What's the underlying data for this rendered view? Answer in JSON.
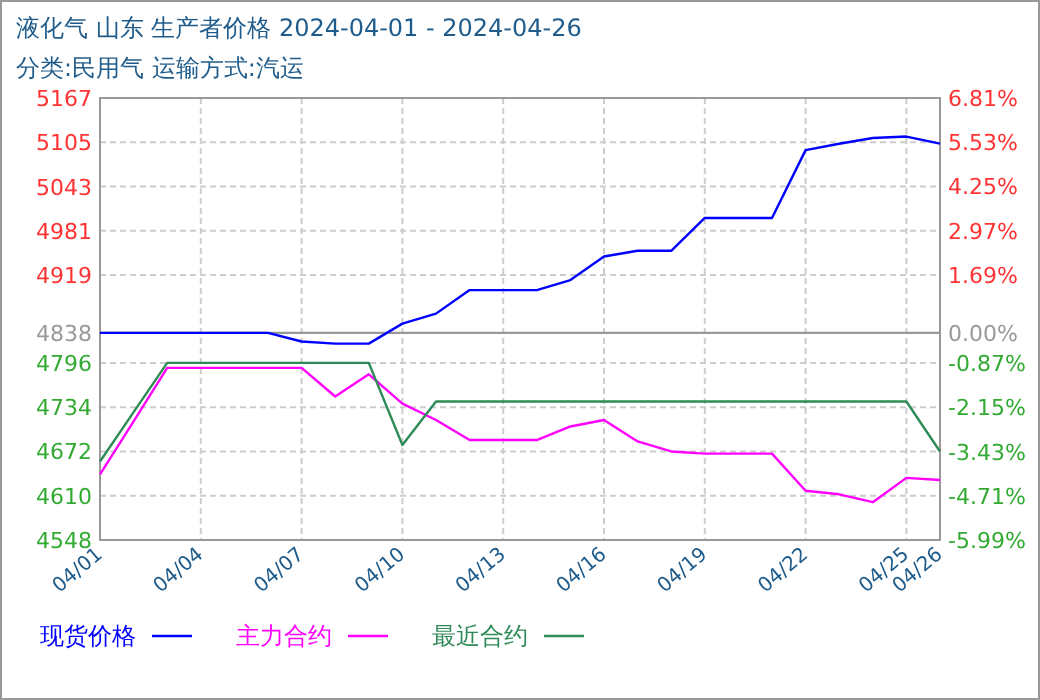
{
  "chart_data": {
    "type": "line",
    "title": "液化气 山东 生产者价格 2024-04-01 - 2024-04-26",
    "subtitle": "分类:民用气 运输方式:汽运",
    "x": [
      "2024-04-01",
      "2024-04-02",
      "2024-04-03",
      "2024-04-04",
      "2024-04-05",
      "2024-04-06",
      "2024-04-07",
      "2024-04-08",
      "2024-04-09",
      "2024-04-10",
      "2024-04-11",
      "2024-04-12",
      "2024-04-13",
      "2024-04-14",
      "2024-04-15",
      "2024-04-16",
      "2024-04-17",
      "2024-04-18",
      "2024-04-19",
      "2024-04-20",
      "2024-04-21",
      "2024-04-22",
      "2024-04-23",
      "2024-04-24",
      "2024-04-25",
      "2024-04-26"
    ],
    "series": [
      {
        "name": "现货价格",
        "color": "#0000ff",
        "values": [
          4838,
          4838,
          4838,
          4838,
          4838,
          4838,
          4826,
          4823,
          4823,
          4851,
          4865,
          4898,
          4898,
          4898,
          4912,
          4945,
          4953,
          4953,
          4999,
          4999,
          4999,
          5094,
          5103,
          5111,
          5113,
          5103
        ]
      },
      {
        "name": "主力合约",
        "color": "#ff00ff",
        "values": [
          4640,
          4714,
          4789,
          4789,
          4789,
          4789,
          4789,
          4749,
          4780,
          4739,
          4716,
          4688,
          4688,
          4688,
          4707,
          4716,
          4686,
          4672,
          4669,
          4669,
          4669,
          4617,
          4612,
          4601,
          4635,
          4632
        ]
      },
      {
        "name": "最近合约",
        "color": "#2e8b57",
        "values": [
          4658,
          4727,
          4796,
          4796,
          4796,
          4796,
          4796,
          4796,
          4796,
          4681,
          4742,
          4742,
          4742,
          4742,
          4742,
          4742,
          4742,
          4742,
          4742,
          4742,
          4742,
          4742,
          4742,
          4742,
          4742,
          4672
        ]
      }
    ],
    "xlim": [
      "2024-04-01",
      "2024-04-26"
    ],
    "xticks": [
      {
        "value": "2024-04-01",
        "label": "04/01"
      },
      {
        "value": "2024-04-04",
        "label": "04/04"
      },
      {
        "value": "2024-04-07",
        "label": "04/07"
      },
      {
        "value": "2024-04-10",
        "label": "04/10"
      },
      {
        "value": "2024-04-13",
        "label": "04/13"
      },
      {
        "value": "2024-04-16",
        "label": "04/16"
      },
      {
        "value": "2024-04-19",
        "label": "04/19"
      },
      {
        "value": "2024-04-22",
        "label": "04/22"
      },
      {
        "value": "2024-04-25",
        "label": "04/25"
      },
      {
        "value": "2024-04-26",
        "label": "04/26"
      }
    ],
    "ylim": [
      4548,
      5167
    ],
    "yticks": [
      4548,
      4610,
      4672,
      4734,
      4796,
      4838,
      4919,
      4981,
      5043,
      5105,
      5167
    ],
    "y2lim": [
      -5.99,
      6.81
    ],
    "y2ticks": [
      {
        "value": -5.99,
        "label": "-5.99%"
      },
      {
        "value": -4.71,
        "label": "-4.71%"
      },
      {
        "value": -3.43,
        "label": "-3.43%"
      },
      {
        "value": -2.15,
        "label": "-2.15%"
      },
      {
        "value": -0.87,
        "label": "-0.87%"
      },
      {
        "value": 0,
        "label": "0.00%"
      },
      {
        "value": 1.69,
        "label": "1.69%"
      },
      {
        "value": 2.97,
        "label": "2.97%"
      },
      {
        "value": 4.25,
        "label": "4.25%"
      },
      {
        "value": 5.53,
        "label": "5.53%"
      },
      {
        "value": 6.81,
        "label": "6.81%"
      }
    ],
    "ref_lines": [
      {
        "axis": "y",
        "value": 4838,
        "color": "#999999"
      }
    ],
    "grid": true,
    "legend": "bottom",
    "marker": "none",
    "line_style": "solid"
  }
}
